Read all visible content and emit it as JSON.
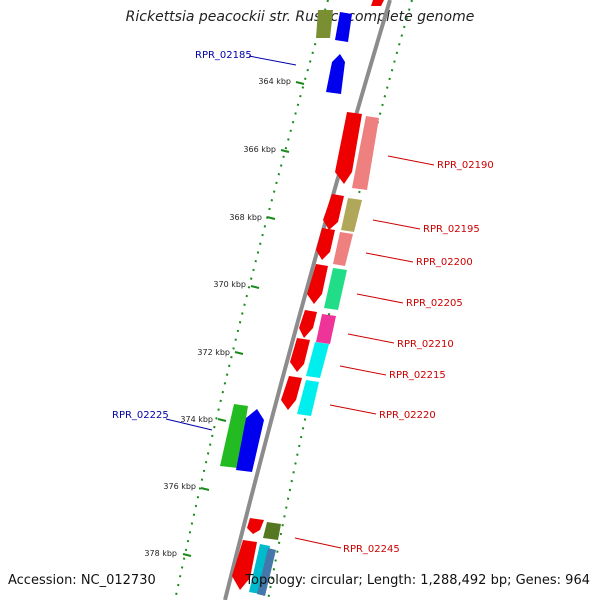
{
  "title": "Rickettsia peacockii str. Rustic, complete genome",
  "footer": {
    "accession": "Accession: NC_012730",
    "summary": "Topology: circular; Length: 1,288,492 bp; Genes: 964"
  },
  "colors": {
    "backbone": "#8c8c8c",
    "forward_ring": "#1a8a1a",
    "label_reverse": "#cc0000",
    "label_forward": "#0000aa"
  },
  "ticks": [
    {
      "label": "364 kbp"
    },
    {
      "label": "366 kbp"
    },
    {
      "label": "368 kbp"
    },
    {
      "label": "370 kbp"
    },
    {
      "label": "372 kbp"
    },
    {
      "label": "374 kbp"
    },
    {
      "label": "376 kbp"
    },
    {
      "label": "378 kbp"
    }
  ],
  "gene_labels": [
    {
      "name": "RPR_02185",
      "strand": "forward"
    },
    {
      "name": "RPR_02190",
      "strand": "reverse"
    },
    {
      "name": "RPR_02195",
      "strand": "reverse"
    },
    {
      "name": "RPR_02200",
      "strand": "reverse"
    },
    {
      "name": "RPR_02205",
      "strand": "reverse"
    },
    {
      "name": "RPR_02210",
      "strand": "reverse"
    },
    {
      "name": "RPR_02215",
      "strand": "reverse"
    },
    {
      "name": "RPR_02220",
      "strand": "reverse"
    },
    {
      "name": "RPR_02225",
      "strand": "forward"
    },
    {
      "name": "RPR_02245",
      "strand": "reverse"
    }
  ]
}
